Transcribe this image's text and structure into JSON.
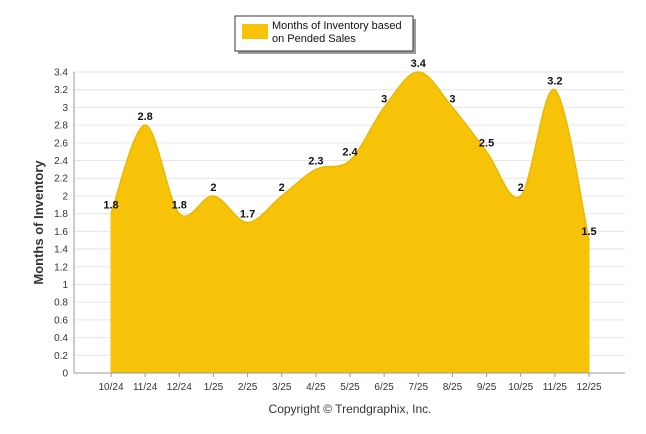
{
  "chart_data": {
    "type": "area",
    "title": "",
    "xlabel": "",
    "ylabel": "Months of Inventory",
    "categories": [
      "10/24",
      "11/24",
      "12/24",
      "1/25",
      "2/25",
      "3/25",
      "4/25",
      "5/25",
      "6/25",
      "7/25",
      "8/25",
      "9/25",
      "10/25",
      "11/25",
      "12/25"
    ],
    "series": [
      {
        "name": "Months of Inventory based on Pended Sales",
        "values": [
          1.8,
          2.8,
          1.8,
          2,
          1.7,
          2,
          2.3,
          2.4,
          3,
          3.4,
          3,
          2.5,
          2,
          3.2,
          1.5
        ],
        "labels": [
          "1.8",
          "2.8",
          "1.8",
          "2",
          "1.7",
          "2",
          "2.3",
          "2.4",
          "3",
          "3.4",
          "3",
          "2.5",
          "2",
          "3.2",
          "1.5"
        ]
      }
    ],
    "ylim": [
      0,
      3.4
    ],
    "yticks": [
      0,
      0.2,
      0.4,
      0.6,
      0.8,
      1,
      1.2,
      1.4,
      1.6,
      1.8,
      2,
      2.2,
      2.4,
      2.6,
      2.8,
      3,
      3.2,
      3.4
    ],
    "ytick_labels": [
      "0",
      "0.2",
      "0.4",
      "0.6",
      "0.8",
      "1",
      "1.2",
      "1.4",
      "1.6",
      "1.8",
      "2",
      "2.2",
      "2.4",
      "2.6",
      "2.8",
      "3",
      "3.2",
      "3.4"
    ],
    "grid": true,
    "legend": {
      "position": "top",
      "label_lines": [
        "Months of Inventory based",
        "on Pended Sales"
      ]
    },
    "colors": {
      "series": "#f7c308",
      "grid": "#e6e6e6",
      "axis": "#9a9a9a",
      "legend_border": "#3a3a3a"
    }
  },
  "footer": {
    "copyright": "Copyright © Trendgraphix, Inc."
  }
}
